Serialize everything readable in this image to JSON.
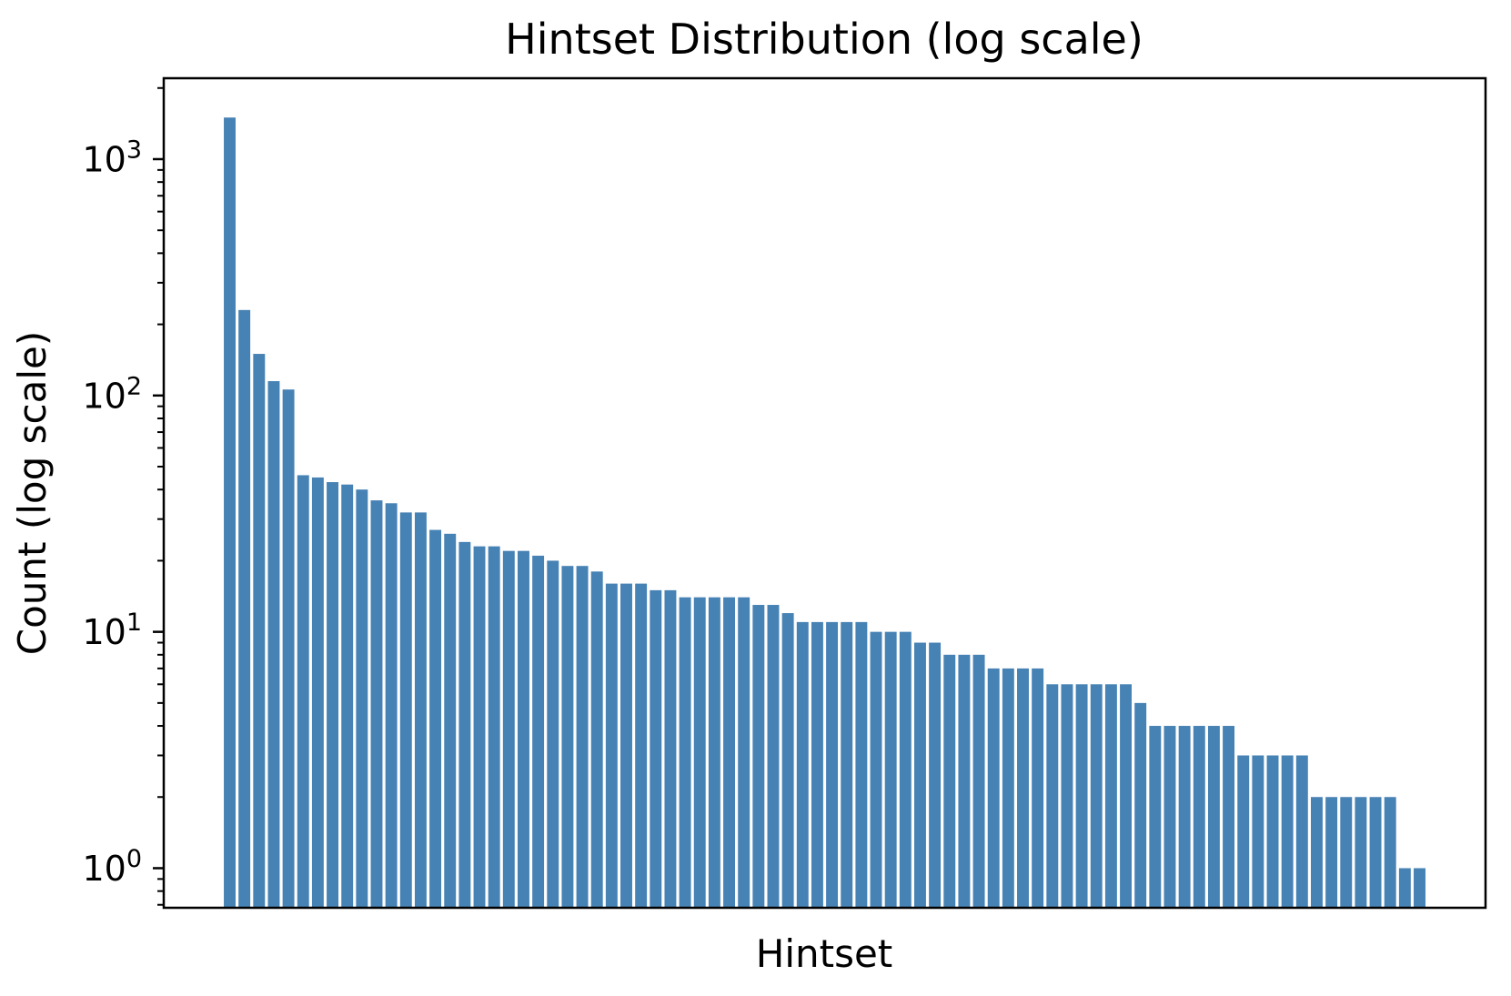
{
  "chart_data": {
    "type": "bar",
    "title": "Hintset Distribution (log scale)",
    "xlabel": "Hintset",
    "ylabel": "Count (log scale)",
    "y_scale": "log",
    "ylim": [
      0.68,
      2200
    ],
    "xlim": [
      -4.49,
      85.49
    ],
    "bar_width": 0.8,
    "bar_color": "#4682b4",
    "axis_color": "#000000",
    "grid": false,
    "legend": "none",
    "x_ticks_visible": false,
    "y_ticks": [
      {
        "value": 1,
        "base": "10",
        "exp": "0"
      },
      {
        "value": 10,
        "base": "10",
        "exp": "1"
      },
      {
        "value": 100,
        "base": "10",
        "exp": "2"
      },
      {
        "value": 1000,
        "base": "10",
        "exp": "3"
      }
    ],
    "values": [
      1500,
      230,
      150,
      115,
      106,
      46,
      45,
      43,
      42,
      40,
      36,
      35,
      32,
      32,
      27,
      26,
      24,
      23,
      23,
      22,
      22,
      21,
      20,
      19,
      19,
      18,
      16,
      16,
      16,
      15,
      15,
      14,
      14,
      14,
      14,
      14,
      13,
      13,
      12,
      11,
      11,
      11,
      11,
      11,
      10,
      10,
      10,
      9,
      9,
      8,
      8,
      8,
      7,
      7,
      7,
      7,
      6,
      6,
      6,
      6,
      6,
      6,
      5,
      4,
      4,
      4,
      4,
      4,
      4,
      3,
      3,
      3,
      3,
      3,
      2,
      2,
      2,
      2,
      2,
      2,
      1,
      1
    ]
  }
}
